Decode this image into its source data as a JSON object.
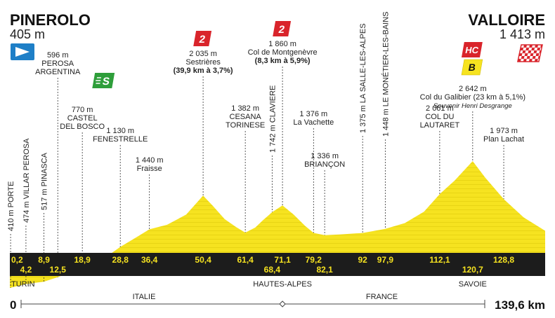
{
  "start": {
    "name": "PINEROLO",
    "altitude": "405 m"
  },
  "finish": {
    "name": "VALLOIRE",
    "altitude": "1 413 m"
  },
  "distance_label": "139,6 km",
  "zero_label": "0",
  "regions": [
    {
      "label": "TURIN",
      "km": 0
    },
    {
      "label": "HAUTES-ALPES",
      "km": 71.1
    },
    {
      "label": "SAVOIE",
      "km": 120.7
    }
  ],
  "countries": [
    {
      "label": "ITALIE",
      "km": 35
    },
    {
      "label": "FRANCE",
      "km": 97
    }
  ],
  "country_border_km": 71.1,
  "colors": {
    "profile": "#f6e320",
    "profile_grid": "#e2cc10",
    "dark_band": "#1c1c1c",
    "km_text": "#f6e320",
    "climb_cat2": "#d9242b",
    "climb_hc": "#d9242b",
    "souvenir_b": "#f6e320",
    "sprint": "#2e9e3a",
    "start_flag": "#1e7fc7"
  },
  "badges": {
    "cat2_label": "2",
    "hc_label": "HC",
    "souvenir_label": "B",
    "sprint_label": "S"
  },
  "chart_data": {
    "type": "area",
    "xlabel": "",
    "ylabel": "",
    "xlim": [
      0,
      139.6
    ],
    "ylim": [
      0,
      2800
    ],
    "profile_km": [
      0,
      0.2,
      4.2,
      8.9,
      12.5,
      18.9,
      24,
      28.8,
      33,
      36.4,
      41,
      46,
      50.4,
      53,
      56,
      59,
      61.4,
      64,
      66,
      68.4,
      71.1,
      74,
      77,
      79.2,
      82.1,
      86,
      92,
      97.9,
      103,
      108,
      112.1,
      116,
      120.7,
      124,
      128.8,
      134,
      139.6
    ],
    "profile_alt": [
      405,
      410,
      474,
      517,
      596,
      770,
      900,
      1130,
      1300,
      1440,
      1520,
      1700,
      2035,
      1850,
      1620,
      1480,
      1382,
      1470,
      1600,
      1742,
      1860,
      1700,
      1500,
      1376,
      1336,
      1350,
      1375,
      1448,
      1550,
      1750,
      2061,
      2300,
      2642,
      2350,
      1973,
      1650,
      1413
    ],
    "km_marks": [
      {
        "label": "0,2",
        "km": 0.2,
        "row": 0
      },
      {
        "label": "4,2",
        "km": 4.2,
        "row": 1
      },
      {
        "label": "8,9",
        "km": 8.9,
        "row": 0
      },
      {
        "label": "12,5",
        "km": 12.5,
        "row": 1
      },
      {
        "label": "18,9",
        "km": 18.9,
        "row": 0
      },
      {
        "label": "28,8",
        "km": 28.8,
        "row": 0
      },
      {
        "label": "36,4",
        "km": 36.4,
        "row": 0
      },
      {
        "label": "50,4",
        "km": 50.4,
        "row": 0
      },
      {
        "label": "61,4",
        "km": 61.4,
        "row": 0
      },
      {
        "label": "71,1",
        "km": 71.1,
        "row": 0
      },
      {
        "label": "68,4",
        "km": 68.4,
        "row": 1
      },
      {
        "label": "79,2",
        "km": 79.2,
        "row": 0
      },
      {
        "label": "82,1",
        "km": 82.1,
        "row": 1
      },
      {
        "label": "92",
        "km": 92,
        "row": 0
      },
      {
        "label": "97,9",
        "km": 97.9,
        "row": 0
      },
      {
        "label": "112,1",
        "km": 112.1,
        "row": 0
      },
      {
        "label": "120,7",
        "km": 120.7,
        "row": 1
      },
      {
        "label": "128,8",
        "km": 128.8,
        "row": 0
      }
    ],
    "points": [
      {
        "km": 0.2,
        "alt": 410,
        "lines": [
          "410 m PORTE"
        ],
        "vertical": true
      },
      {
        "km": 4.2,
        "alt": 474,
        "lines": [
          "474 m VILLAR PEROSA"
        ],
        "vertical": true
      },
      {
        "km": 8.9,
        "alt": 517,
        "lines": [
          "517 m PINASCA"
        ],
        "vertical": true
      },
      {
        "km": 12.5,
        "alt": 596,
        "lines": [
          "596 m",
          "PEROSA",
          "ARGENTINA"
        ],
        "vertical": false
      },
      {
        "km": 18.9,
        "alt": 770,
        "lines": [
          "770 m",
          "CASTEL",
          "DEL BOSCO"
        ],
        "vertical": false,
        "sprint": true
      },
      {
        "km": 28.8,
        "alt": 1130,
        "lines": [
          "1 130 m",
          "FENESTRELLE"
        ],
        "vertical": false
      },
      {
        "km": 36.4,
        "alt": 1440,
        "lines": [
          "1 440 m",
          "Fraisse"
        ],
        "vertical": false
      },
      {
        "km": 50.4,
        "alt": 2035,
        "lines": [
          "2 035 m",
          "Sestrières",
          "(39,9 km à 3,7%)"
        ],
        "vertical": false,
        "climb": "2"
      },
      {
        "km": 61.4,
        "alt": 1382,
        "lines": [
          "1 382 m",
          "CESANA",
          "TORINESE"
        ],
        "vertical": false
      },
      {
        "km": 68.4,
        "alt": 1742,
        "lines": [
          "1 742 m CLAVIERE"
        ],
        "vertical": true
      },
      {
        "km": 71.1,
        "alt": 1860,
        "lines": [
          "1 860 m",
          "Col de Montgenèvre",
          "(8,3 km à 5,9%)"
        ],
        "vertical": false,
        "climb": "2"
      },
      {
        "km": 79.2,
        "alt": 1376,
        "lines": [
          "1 376 m",
          "La Vachette"
        ],
        "vertical": false
      },
      {
        "km": 82.1,
        "alt": 1336,
        "lines": [
          "1 336 m",
          "BRIANÇON"
        ],
        "vertical": false
      },
      {
        "km": 92,
        "alt": 1375,
        "lines": [
          "1 375 m LA SALLE-LES-ALPES"
        ],
        "vertical": true
      },
      {
        "km": 97.9,
        "alt": 1448,
        "lines": [
          "1 448 m LE MONÉTIER-LES-BAINS"
        ],
        "vertical": true
      },
      {
        "km": 112.1,
        "alt": 2061,
        "lines": [
          "2 061 m",
          "COL DU",
          "LAUTARET"
        ],
        "vertical": false
      },
      {
        "km": 120.7,
        "alt": 2642,
        "lines": [
          "2 642 m",
          "Col du Galibier (23 km à 5,1%)",
          "Souvenir Henri Desgrange"
        ],
        "vertical": false,
        "climb": "HC"
      },
      {
        "km": 128.8,
        "alt": 1973,
        "lines": [
          "1 973 m",
          "Plan Lachat"
        ],
        "vertical": false
      }
    ]
  }
}
